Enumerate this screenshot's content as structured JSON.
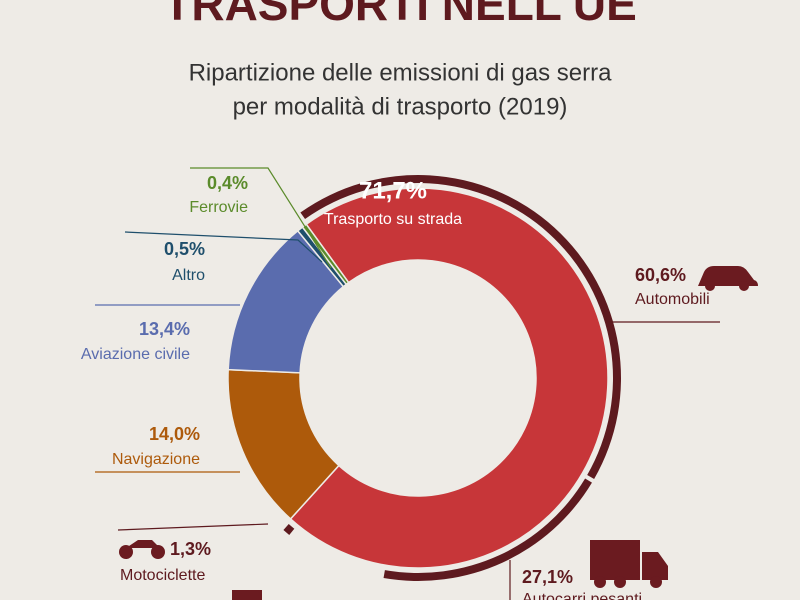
{
  "chart_data": {
    "type": "donut",
    "title": "TRASPORTI NELL'UE",
    "subtitle": [
      "Ripartizione delle emissioni di gas serra",
      "per modalità di trasporto (2019)"
    ],
    "categories": [
      "Trasporto su strada",
      "Navigazione",
      "Aviazione civile",
      "Altro",
      "Ferrovie"
    ],
    "values": [
      71.7,
      14.0,
      13.4,
      0.5,
      0.4
    ],
    "value_labels": [
      "71,7%",
      "14,0%",
      "13,4%",
      "0,5%",
      "0,4%"
    ],
    "colors": [
      "#c73639",
      "#ad5a0b",
      "#5a6cae",
      "#1f4f6c",
      "#5b8b2b"
    ],
    "breakdown": {
      "parent": 0,
      "categories": [
        "Automobili",
        "Autocarri pesanti",
        "Motociclette"
      ],
      "values": [
        60.6,
        27.1,
        1.3
      ],
      "value_labels": [
        "60,6%",
        "27,1%",
        "1,3%"
      ],
      "color": "#5e1a1f"
    }
  }
}
